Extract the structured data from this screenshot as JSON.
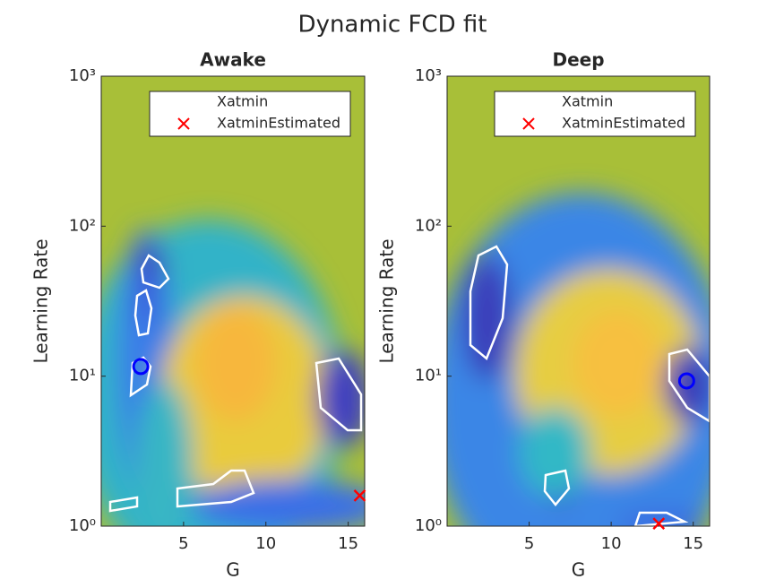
{
  "title": "Dynamic FCD fit",
  "chart_data": [
    {
      "type": "scatter",
      "title": "Awake",
      "xlabel": "G",
      "ylabel": "Learning Rate",
      "xlim": [
        0,
        16
      ],
      "xticks": [
        5,
        10,
        15
      ],
      "ylim": [
        1,
        1000
      ],
      "yscale": "log",
      "yticks": [
        {
          "value": 1,
          "label": "10⁰"
        },
        {
          "value": 10,
          "label": "10¹"
        },
        {
          "value": 100,
          "label": "10²"
        },
        {
          "value": 1000,
          "label": "10³"
        }
      ],
      "legend": "northeast",
      "series": [
        {
          "name": "Xatmin",
          "color": "#0000ff",
          "marker": "o",
          "x": [
            2.4
          ],
          "values": [
            11.6
          ]
        },
        {
          "name": "XatminEstimated",
          "color": "#ff0000",
          "marker": "x",
          "x": [
            15.7
          ],
          "values": [
            1.6
          ]
        }
      ]
    },
    {
      "type": "scatter",
      "title": "Deep",
      "xlabel": "G",
      "ylabel": "Learning Rate",
      "xlim": [
        0,
        16
      ],
      "xticks": [
        5,
        10,
        15
      ],
      "ylim": [
        1,
        1000
      ],
      "yscale": "log",
      "yticks": [
        {
          "value": 1,
          "label": "10⁰"
        },
        {
          "value": 10,
          "label": "10¹"
        },
        {
          "value": 100,
          "label": "10²"
        },
        {
          "value": 1000,
          "label": "10³"
        }
      ],
      "legend": "northeast",
      "series": [
        {
          "name": "Xatmin",
          "color": "#0000ff",
          "marker": "o",
          "x": [
            14.6
          ],
          "values": [
            9.3
          ]
        },
        {
          "name": "XatminEstimated",
          "color": "#ff0000",
          "marker": "x",
          "x": [
            12.9
          ],
          "values": [
            1.04
          ]
        }
      ]
    }
  ]
}
